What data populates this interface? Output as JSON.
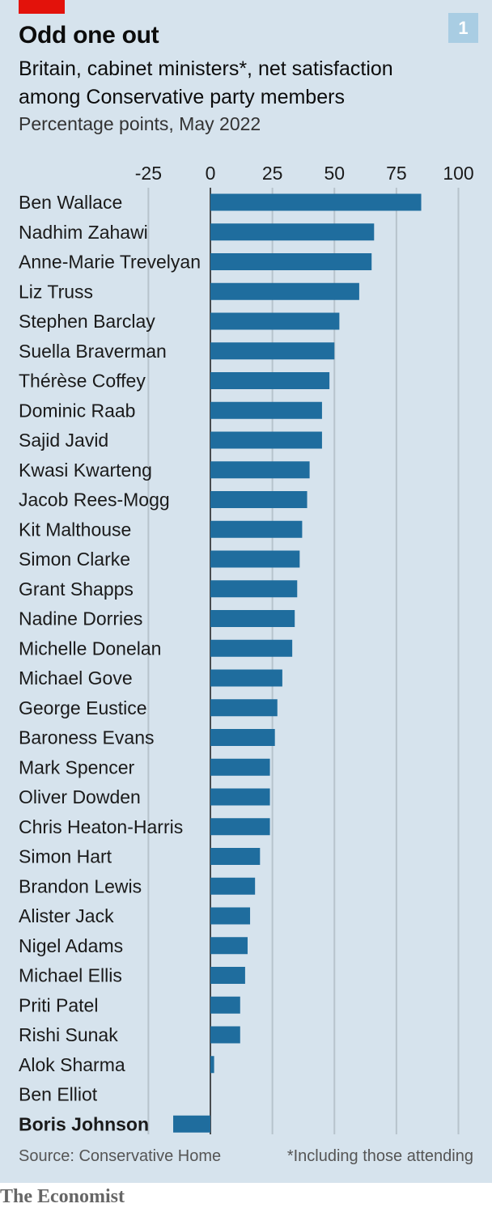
{
  "header": {
    "badge": "1",
    "title": "Odd one out",
    "subtitle": "Britain, cabinet ministers*, net satisfaction among Conservative party members",
    "units": "Percentage points, May 2022"
  },
  "footer": {
    "source": "Source: Conservative Home",
    "footnote": "*Including those attending",
    "logo": "The Economist"
  },
  "colors": {
    "panel": "#d6e3ed",
    "bar": "#1f6d9e",
    "grid": "#b7c3cc",
    "accent_red": "#e3120b",
    "badge": "#a9cde3"
  },
  "chart_data": {
    "type": "bar",
    "orientation": "horizontal",
    "title": "Odd one out",
    "xlim": [
      -25,
      100
    ],
    "xticks": [
      "-25",
      "0",
      "25",
      "50",
      "75",
      "100"
    ],
    "xtick_values": [
      -25,
      0,
      25,
      50,
      75,
      100
    ],
    "grid": true,
    "highlight": "Boris Johnson",
    "categories": [
      "Ben Wallace",
      "Nadhim Zahawi",
      "Anne-Marie Trevelyan",
      "Liz Truss",
      "Stephen Barclay",
      "Suella Braverman",
      "Thérèse Coffey",
      "Dominic Raab",
      "Sajid Javid",
      "Kwasi Kwarteng",
      "Jacob Rees-Mogg",
      "Kit Malthouse",
      "Simon Clarke",
      "Grant Shapps",
      "Nadine Dorries",
      "Michelle Donelan",
      "Michael Gove",
      "George Eustice",
      "Baroness Evans",
      "Mark Spencer",
      "Oliver Dowden",
      "Chris Heaton-Harris",
      "Simon Hart",
      "Brandon Lewis",
      "Alister Jack",
      "Nigel Adams",
      "Michael Ellis",
      "Priti Patel",
      "Rishi Sunak",
      "Alok Sharma",
      "Ben Elliot",
      "Boris Johnson"
    ],
    "values": [
      85,
      66,
      65,
      60,
      52,
      50,
      48,
      45,
      45,
      40,
      39,
      37,
      36,
      35,
      34,
      33,
      29,
      27,
      26,
      24,
      24,
      24,
      20,
      18,
      16,
      15,
      14,
      12,
      12,
      1.5,
      0,
      -15
    ]
  }
}
